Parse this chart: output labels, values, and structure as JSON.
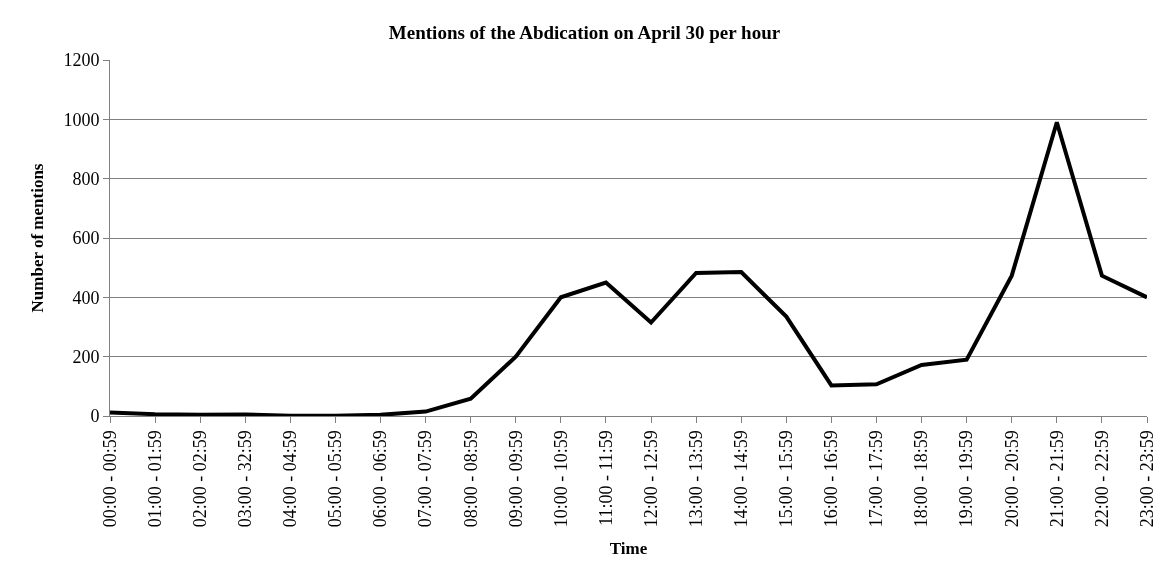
{
  "chart_data": {
    "type": "line",
    "title": "Mentions of the Abdication on April 30 per hour",
    "xlabel": "Time",
    "ylabel": "Number of mentions",
    "categories": [
      "00:00 - 00:59",
      "01:00 - 01:59",
      "02:00 - 02:59",
      "03:00 - 32:59",
      "04:00 - 04:59",
      "05:00 - 05:59",
      "06:00 - 06:59",
      "07:00 - 07:59",
      "08:00 - 08:59",
      "09:00 - 09:59",
      "10:00 - 10:59",
      "11:00 - 11:59",
      "12:00 - 12:59",
      "13:00 - 13:59",
      "14:00 - 14:59",
      "15:00 - 15:59",
      "16:00 - 16:59",
      "17:00 - 17:59",
      "18:00 - 18:59",
      "19:00 - 19:59",
      "20:00 - 20:59",
      "21:00 - 21:59",
      "22:00 - 22:59",
      "23:00 - 23:59"
    ],
    "series": [
      {
        "color": "#000000",
        "values": [
          12,
          6,
          4,
          5,
          1,
          1,
          4,
          15,
          58,
          200,
          400,
          450,
          315,
          482,
          485,
          335,
          103,
          107,
          172,
          190,
          473,
          990,
          473,
          400
        ]
      }
    ],
    "ylim": [
      0,
      1200
    ],
    "yticks": [
      0,
      200,
      400,
      600,
      800,
      1000,
      1200
    ],
    "grid": "y",
    "legend": false,
    "marker": "none",
    "line_style": "solid"
  }
}
